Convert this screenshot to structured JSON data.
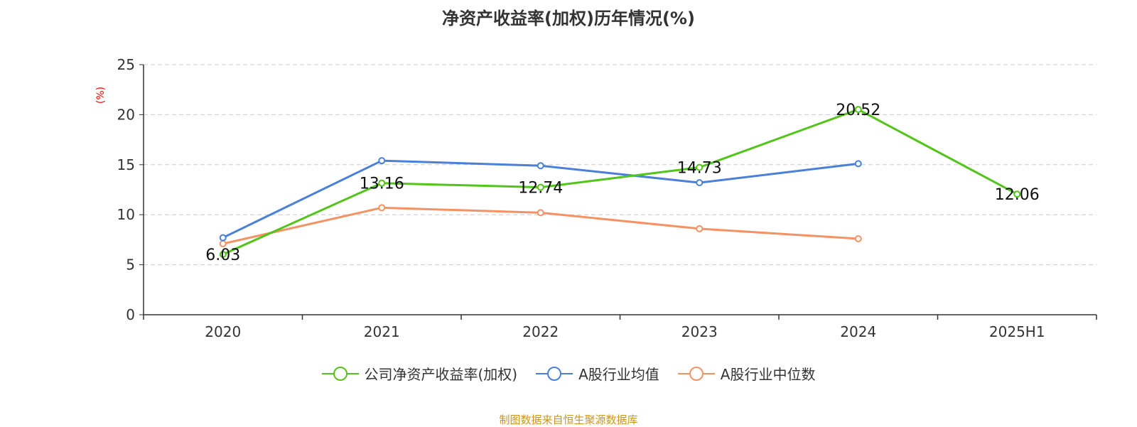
{
  "chart_data": {
    "type": "line",
    "title": "净资产收益率(加权)历年情况(%)",
    "ylabel": "(%)",
    "xlabel": "",
    "categories": [
      "2020",
      "2021",
      "2022",
      "2023",
      "2024",
      "2025H1"
    ],
    "ylim": [
      0,
      25
    ],
    "yticks": [
      "0",
      "5",
      "10",
      "15",
      "20",
      "25"
    ],
    "grid": true,
    "legend_position": "bottom",
    "series": [
      {
        "name": "公司净资产收益率(加权)",
        "color": "#52c41a",
        "values": [
          6.03,
          13.16,
          12.74,
          14.73,
          20.52,
          12.06
        ],
        "labels": [
          "6.03",
          "13.16",
          "12.74",
          "14.73",
          "20.52",
          "12.06"
        ]
      },
      {
        "name": "A股行业均值",
        "color": "#4a80d9",
        "values": [
          7.7,
          15.4,
          14.9,
          13.2,
          15.1,
          null
        ],
        "labels": []
      },
      {
        "name": "A股行业中位数",
        "color": "#f59264",
        "values": [
          7.1,
          10.7,
          10.2,
          8.6,
          7.6,
          null
        ],
        "labels": []
      }
    ],
    "source": "制图数据来自恒生聚源数据库"
  }
}
